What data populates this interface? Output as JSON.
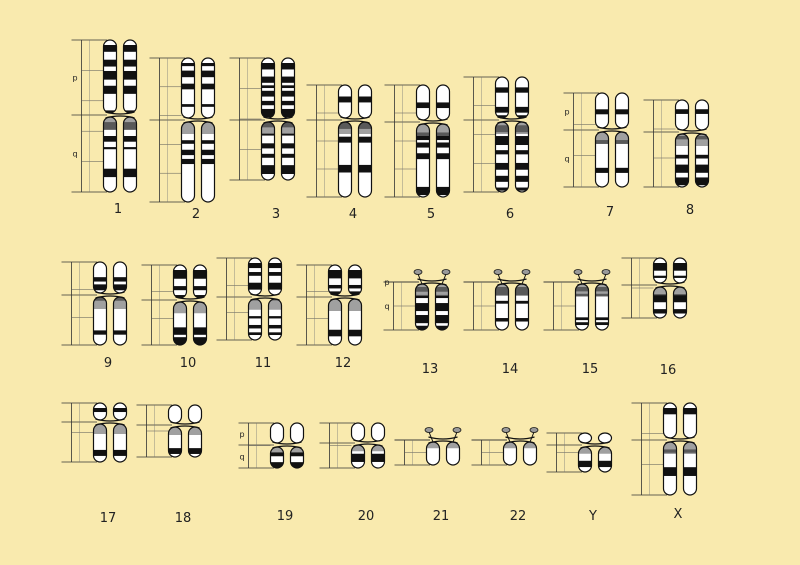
{
  "background": "#f9eaae",
  "band_color": "#111111",
  "centromere_shade": "#777777",
  "arm_labels": {
    "p": "p",
    "q": "q"
  },
  "chromosomes": [
    {
      "label": "1"
    },
    {
      "label": "2"
    },
    {
      "label": "3"
    },
    {
      "label": "4"
    },
    {
      "label": "5"
    },
    {
      "label": "6"
    },
    {
      "label": "7"
    },
    {
      "label": "8"
    },
    {
      "label": "9"
    },
    {
      "label": "10"
    },
    {
      "label": "11"
    },
    {
      "label": "12"
    },
    {
      "label": "13"
    },
    {
      "label": "14"
    },
    {
      "label": "15"
    },
    {
      "label": "16"
    },
    {
      "label": "17"
    },
    {
      "label": "18"
    },
    {
      "label": "19"
    },
    {
      "label": "20"
    },
    {
      "label": "21"
    },
    {
      "label": "22"
    },
    {
      "label": "Y"
    },
    {
      "label": "X"
    }
  ]
}
